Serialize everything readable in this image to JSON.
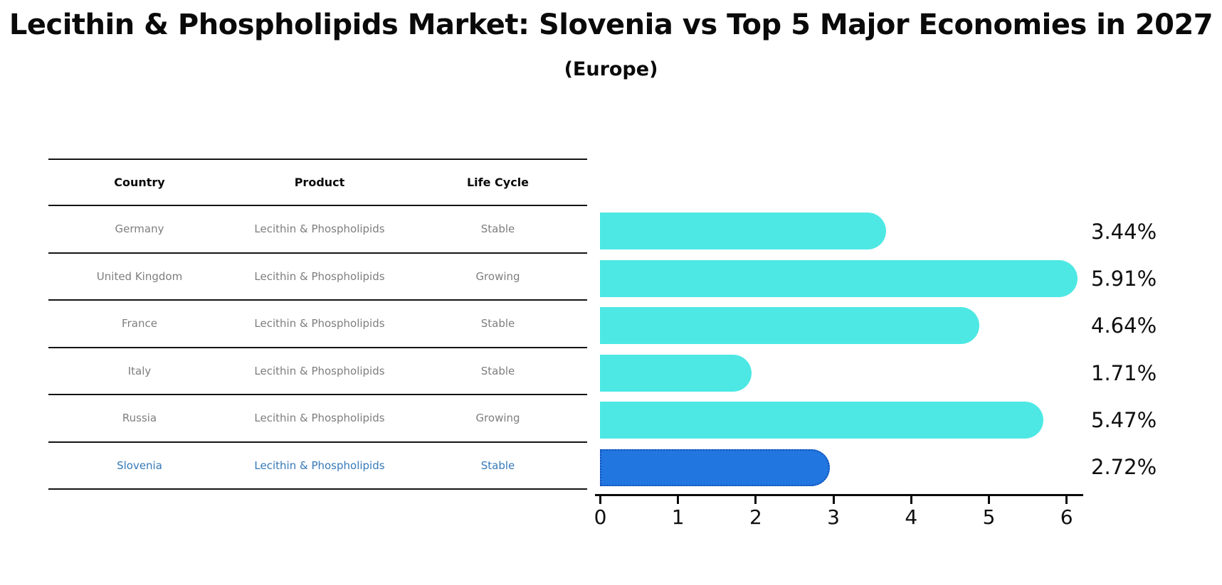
{
  "page": {
    "kind": "market-comparison-chart"
  },
  "table": {
    "headers": [
      "Country",
      "Product",
      "Life Cycle"
    ],
    "rows": [
      {
        "country": "Germany",
        "product": "Lecithin & Phospholipids",
        "life_cycle": "Stable",
        "highlight": false
      },
      {
        "country": "United Kingdom",
        "product": "Lecithin & Phospholipids",
        "life_cycle": "Growing",
        "highlight": false
      },
      {
        "country": "France",
        "product": "Lecithin & Phospholipids",
        "life_cycle": "Stable",
        "highlight": false
      },
      {
        "country": "Italy",
        "product": "Lecithin & Phospholipids",
        "life_cycle": "Stable",
        "highlight": false
      },
      {
        "country": "Russia",
        "product": "Lecithin & Phospholipids",
        "life_cycle": "Growing",
        "highlight": false
      },
      {
        "country": "Slovenia",
        "product": "Lecithin & Phospholipids",
        "life_cycle": "Stable",
        "highlight": true
      }
    ]
  },
  "chart_data": {
    "type": "bar",
    "orientation": "horizontal",
    "title": "Lecithin & Phospholipids Market: Slovenia vs Top 5 Major Economies in 2027",
    "subtitle": "(Europe)",
    "categories": [
      "Germany",
      "United Kingdom",
      "France",
      "Italy",
      "Russia",
      "Slovenia"
    ],
    "values": [
      3.44,
      5.91,
      4.64,
      1.71,
      5.47,
      2.72
    ],
    "labels": [
      "3.44%",
      "5.91%",
      "4.64%",
      "1.71%",
      "5.47%",
      "2.72%"
    ],
    "unit": "%",
    "xticks": [
      "0",
      "1",
      "2",
      "3",
      "4",
      "5",
      "6"
    ],
    "xlim": [
      0,
      6.2
    ],
    "grid": false,
    "legend": "none",
    "bar_color": "#4DE8E4",
    "highlight_index": 5,
    "highlight_color": "#2176E0",
    "highlight_border_color": "#1450B4",
    "highlight_border_style": "dotted"
  },
  "colors": {
    "title_text": "#0a0a0a",
    "table_text": "#7e7e7e",
    "table_line": "#141414",
    "highlight_row_text": "#3579b9",
    "axis": "#0a0a0a"
  }
}
